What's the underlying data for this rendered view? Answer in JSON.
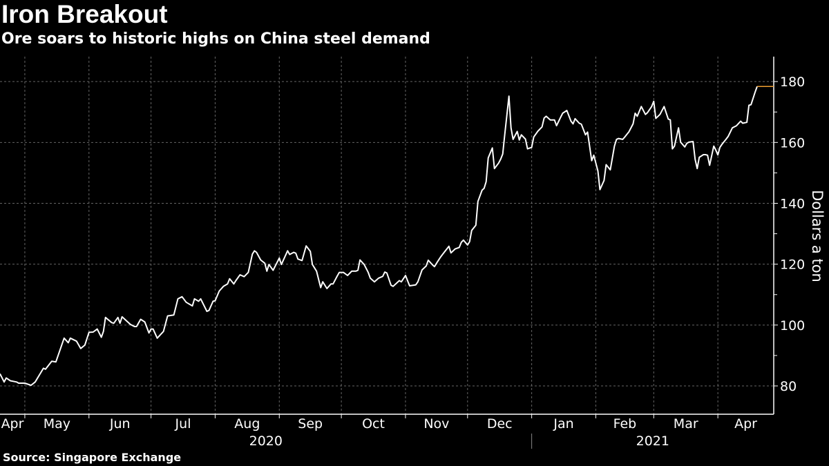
{
  "title": "Iron Breakout",
  "subtitle": "Ore soars to historic highs on China steel demand",
  "source": "Source: Singapore Exchange",
  "chart_data": {
    "type": "line",
    "ylabel": "Dollars a ton",
    "xlim": [
      "2020-04-19",
      "2021-04-28"
    ],
    "ylim": [
      70.7,
      188.2
    ],
    "yticks": [
      80,
      100,
      120,
      140,
      160,
      180
    ],
    "yminor_ticks": [
      90,
      110,
      130,
      150,
      170
    ],
    "xticks": [
      {
        "label": "Apr",
        "start": "2020-04-19",
        "end": "2020-05-01"
      },
      {
        "label": "May",
        "start": "2020-05-01",
        "end": "2020-06-01"
      },
      {
        "label": "Jun",
        "start": "2020-06-01",
        "end": "2020-07-01"
      },
      {
        "label": "Jul",
        "start": "2020-07-01",
        "end": "2020-08-01"
      },
      {
        "label": "Aug",
        "start": "2020-08-01",
        "end": "2020-09-01"
      },
      {
        "label": "Sep",
        "start": "2020-09-01",
        "end": "2020-10-01"
      },
      {
        "label": "Oct",
        "start": "2020-10-01",
        "end": "2020-11-01"
      },
      {
        "label": "Nov",
        "start": "2020-11-01",
        "end": "2020-12-01"
      },
      {
        "label": "Dec",
        "start": "2020-12-01",
        "end": "2021-01-01"
      },
      {
        "label": "Jan",
        "start": "2021-01-01",
        "end": "2021-02-01"
      },
      {
        "label": "Feb",
        "start": "2021-02-01",
        "end": "2021-03-01"
      },
      {
        "label": "Mar",
        "start": "2021-03-01",
        "end": "2021-04-01"
      },
      {
        "label": "Apr",
        "start": "2021-04-01",
        "end": "2021-04-28"
      }
    ],
    "years": [
      {
        "label": "2020",
        "start": "2020-04-19",
        "end": "2021-01-01"
      },
      {
        "label": "2021",
        "start": "2021-01-01",
        "end": "2021-04-28"
      }
    ],
    "grid": true,
    "line_color": "#ffffff",
    "last_value_color": "#f0a030",
    "series": [
      {
        "x": [
          "2020-04-19",
          "2020-04-21",
          "2020-04-22",
          "2020-04-24",
          "2020-04-27",
          "2020-04-28",
          "2020-05-01",
          "2020-05-04",
          "2020-05-06",
          "2020-05-10",
          "2020-05-11",
          "2020-05-14",
          "2020-05-16",
          "2020-05-20",
          "2020-05-22",
          "2020-05-23",
          "2020-05-26",
          "2020-05-28",
          "2020-05-30",
          "2020-06-01",
          "2020-06-03",
          "2020-06-05",
          "2020-06-07",
          "2020-06-08",
          "2020-06-09",
          "2020-06-12",
          "2020-06-13",
          "2020-06-15",
          "2020-06-16",
          "2020-06-17",
          "2020-06-21",
          "2020-06-23",
          "2020-06-24",
          "2020-06-26",
          "2020-06-28",
          "2020-06-30",
          "2020-07-01",
          "2020-07-02",
          "2020-07-04",
          "2020-07-07",
          "2020-07-09",
          "2020-07-12",
          "2020-07-14",
          "2020-07-16",
          "2020-07-18",
          "2020-07-21",
          "2020-07-22",
          "2020-07-24",
          "2020-07-25",
          "2020-07-28",
          "2020-07-29",
          "2020-07-31",
          "2020-08-01",
          "2020-08-03",
          "2020-08-05",
          "2020-08-07",
          "2020-08-08",
          "2020-08-10",
          "2020-08-11",
          "2020-08-13",
          "2020-08-15",
          "2020-08-17",
          "2020-08-19",
          "2020-08-20",
          "2020-08-21",
          "2020-08-23",
          "2020-08-25",
          "2020-08-26",
          "2020-08-27",
          "2020-08-29",
          "2020-09-01",
          "2020-09-02",
          "2020-09-05",
          "2020-09-06",
          "2020-09-08",
          "2020-09-09",
          "2020-09-10",
          "2020-09-12",
          "2020-09-14",
          "2020-09-16",
          "2020-09-17",
          "2020-09-19",
          "2020-09-21",
          "2020-09-22",
          "2020-09-24",
          "2020-09-26",
          "2020-09-27",
          "2020-09-29",
          "2020-09-30",
          "2020-10-02",
          "2020-10-04",
          "2020-10-06",
          "2020-10-08",
          "2020-10-09",
          "2020-10-10",
          "2020-10-12",
          "2020-10-14",
          "2020-10-15",
          "2020-10-17",
          "2020-10-19",
          "2020-10-21",
          "2020-10-22",
          "2020-10-23",
          "2020-10-25",
          "2020-10-26",
          "2020-10-29",
          "2020-10-30",
          "2020-11-01",
          "2020-11-03",
          "2020-11-06",
          "2020-11-07",
          "2020-11-09",
          "2020-11-11",
          "2020-11-12",
          "2020-11-14",
          "2020-11-15",
          "2020-11-16",
          "2020-11-18",
          "2020-11-19",
          "2020-11-22",
          "2020-11-23",
          "2020-11-25",
          "2020-11-27",
          "2020-11-28",
          "2020-11-29",
          "2020-12-01",
          "2020-12-02",
          "2020-12-03",
          "2020-12-05",
          "2020-12-06",
          "2020-12-08",
          "2020-12-09",
          "2020-12-10",
          "2020-12-11",
          "2020-12-13",
          "2020-12-14",
          "2020-12-16",
          "2020-12-17",
          "2020-12-18",
          "2020-12-19",
          "2020-12-21",
          "2020-12-22",
          "2020-12-23",
          "2020-12-25",
          "2020-12-26",
          "2020-12-27",
          "2020-12-29",
          "2020-12-30",
          "2021-01-01",
          "2021-01-02",
          "2021-01-04",
          "2021-01-06",
          "2021-01-07",
          "2021-01-08",
          "2021-01-10",
          "2021-01-12",
          "2021-01-13",
          "2021-01-15",
          "2021-01-16",
          "2021-01-18",
          "2021-01-20",
          "2021-01-21",
          "2021-01-22",
          "2021-01-24",
          "2021-01-25",
          "2021-01-27",
          "2021-01-28",
          "2021-01-30",
          "2021-01-31",
          "2021-02-02",
          "2021-02-03",
          "2021-02-05",
          "2021-02-06",
          "2021-02-08",
          "2021-02-10",
          "2021-02-11",
          "2021-02-12",
          "2021-02-14",
          "2021-02-15",
          "2021-02-17",
          "2021-02-19",
          "2021-02-20",
          "2021-02-21",
          "2021-02-23",
          "2021-02-25",
          "2021-02-26",
          "2021-02-28",
          "2021-03-01",
          "2021-03-02",
          "2021-03-04",
          "2021-03-06",
          "2021-03-08",
          "2021-03-09",
          "2021-03-10",
          "2021-03-11",
          "2021-03-13",
          "2021-03-14",
          "2021-03-16",
          "2021-03-17",
          "2021-03-18",
          "2021-03-20",
          "2021-03-21",
          "2021-03-22",
          "2021-03-23",
          "2021-03-25",
          "2021-03-26",
          "2021-03-27",
          "2021-03-28",
          "2021-03-30",
          "2021-03-31",
          "2021-04-01",
          "2021-04-02",
          "2021-04-03",
          "2021-04-05",
          "2021-04-06",
          "2021-04-08",
          "2021-04-10",
          "2021-04-12",
          "2021-04-13",
          "2021-04-15",
          "2021-04-16",
          "2021-04-17",
          "2021-04-19",
          "2021-04-20"
        ],
        "y": [
          84.0,
          81.3,
          82.6,
          81.7,
          81.3,
          80.9,
          80.9,
          80.2,
          81.3,
          85.8,
          85.5,
          88.1,
          87.9,
          95.7,
          94.2,
          95.7,
          94.7,
          92.3,
          93.4,
          97.6,
          97.7,
          98.7,
          96.0,
          97.9,
          102.5,
          100.8,
          100.6,
          102.5,
          100.6,
          102.7,
          100.2,
          99.5,
          99.5,
          101.9,
          101.0,
          97.4,
          98.7,
          98.7,
          95.7,
          97.9,
          103.0,
          103.3,
          108.6,
          109.3,
          107.5,
          106.3,
          108.6,
          107.8,
          108.6,
          104.5,
          104.8,
          107.8,
          108.0,
          111.2,
          112.7,
          113.5,
          115.2,
          113.5,
          114.6,
          116.5,
          115.9,
          117.3,
          123.3,
          124.4,
          123.9,
          121.4,
          120.3,
          117.7,
          119.9,
          118.0,
          122.0,
          119.9,
          124.4,
          123.2,
          123.9,
          123.6,
          121.7,
          121.2,
          126.0,
          124.2,
          119.9,
          117.7,
          112.3,
          114.2,
          112.0,
          113.5,
          113.5,
          116.1,
          117.3,
          117.3,
          116.3,
          117.7,
          117.7,
          118.0,
          121.4,
          119.9,
          117.3,
          115.4,
          114.2,
          115.4,
          116.0,
          117.4,
          117.1,
          113.1,
          112.7,
          114.6,
          114.2,
          116.3,
          112.9,
          113.2,
          114.2,
          118.1,
          119.4,
          121.3,
          119.8,
          119.2,
          120.3,
          122.4,
          123.3,
          125.9,
          123.7,
          125.0,
          125.5,
          127.2,
          127.9,
          126.3,
          127.4,
          131.1,
          132.8,
          140.6,
          144.3,
          144.9,
          147.1,
          154.9,
          158.2,
          151.4,
          153.2,
          154.5,
          156.2,
          162.7,
          175.2,
          164.8,
          161.0,
          163.6,
          160.8,
          162.5,
          161.1,
          157.9,
          158.4,
          161.8,
          163.7,
          165.1,
          168.0,
          168.6,
          167.4,
          167.4,
          165.5,
          168.3,
          169.6,
          170.5,
          167.0,
          166.1,
          167.8,
          166.3,
          166.0,
          162.5,
          163.4,
          154.0,
          155.8,
          150.6,
          144.5,
          147.5,
          152.7,
          151.0,
          158.8,
          161.0,
          161.3,
          161.0,
          161.8,
          163.5,
          166.1,
          169.6,
          168.6,
          171.8,
          169.2,
          169.8,
          171.8,
          173.5,
          167.9,
          169.2,
          171.8,
          167.7,
          167.4,
          157.9,
          158.8,
          164.8,
          160.1,
          158.5,
          159.7,
          160.1,
          160.3,
          154.5,
          151.4,
          155.1,
          156.0,
          156.0,
          155.8,
          152.5,
          158.8,
          157.5,
          155.9,
          158.4,
          159.4,
          161.1,
          162.0,
          164.8,
          165.5,
          167.0,
          166.3,
          166.6,
          172.2,
          172.4,
          176.5,
          178.4
        ]
      }
    ]
  }
}
